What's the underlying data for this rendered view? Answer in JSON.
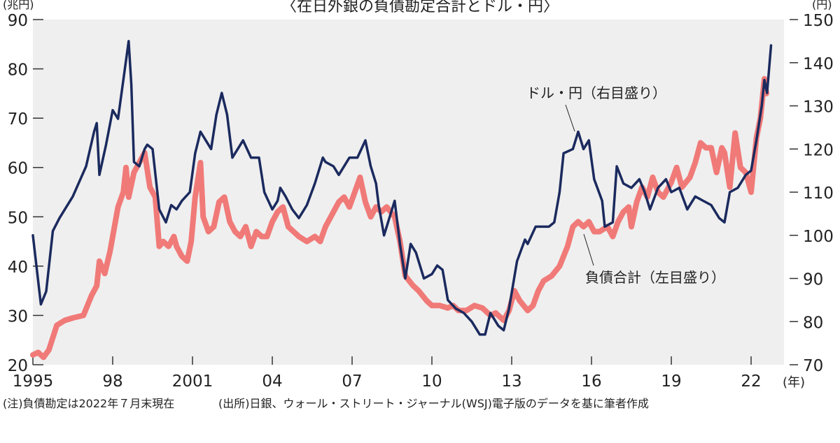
{
  "chart_data": {
    "type": "line",
    "title": "〈在日外銀の負債勘定合計とドル・円〉",
    "left_unit": "(兆円)",
    "right_unit": "(円)",
    "x_unit": "(年)",
    "left_ylim": [
      20,
      90
    ],
    "right_ylim": [
      70,
      150
    ],
    "left_ticks": [
      "20",
      "30",
      "40",
      "50",
      "60",
      "70",
      "80",
      "90"
    ],
    "right_ticks": [
      "70",
      "80",
      "90",
      "100",
      "110",
      "120",
      "130",
      "140",
      "150"
    ],
    "x_ticks": [
      {
        "year": 1995,
        "label": "1995"
      },
      {
        "year": 1998,
        "label": "98"
      },
      {
        "year": 2001,
        "label": "2001"
      },
      {
        "year": 2004,
        "label": "04"
      },
      {
        "year": 2007,
        "label": "07"
      },
      {
        "year": 2010,
        "label": "10"
      },
      {
        "year": 2013,
        "label": "13"
      },
      {
        "year": 2016,
        "label": "16"
      },
      {
        "year": 2019,
        "label": "19"
      },
      {
        "year": 2022,
        "label": "22"
      }
    ],
    "grid": false,
    "background": "#efefef",
    "series": [
      {
        "name": "ドル・円（右目盛り）",
        "axis": "right",
        "color": "#1b2a5e",
        "x": [
          1995.0,
          1995.3,
          1995.5,
          1995.75,
          1996.0,
          1996.5,
          1997.0,
          1997.3,
          1997.4,
          1997.5,
          1997.75,
          1998.0,
          1998.2,
          1998.4,
          1998.6,
          1998.7,
          1998.8,
          1999.0,
          1999.2,
          1999.3,
          1999.5,
          1999.75,
          2000.0,
          2000.2,
          2000.4,
          2000.6,
          2000.9,
          2001.1,
          2001.3,
          2001.5,
          2001.7,
          2001.9,
          2002.1,
          2002.3,
          2002.5,
          2002.7,
          2002.9,
          2003.2,
          2003.5,
          2003.7,
          2004.0,
          2004.2,
          2004.3,
          2004.5,
          2004.75,
          2005.0,
          2005.3,
          2005.6,
          2005.9,
          2006.0,
          2006.3,
          2006.5,
          2006.9,
          2007.2,
          2007.5,
          2007.7,
          2007.9,
          2008.0,
          2008.2,
          2008.4,
          2008.6,
          2008.8,
          2009.0,
          2009.2,
          2009.4,
          2009.7,
          2010.0,
          2010.2,
          2010.4,
          2010.6,
          2010.9,
          2011.2,
          2011.5,
          2011.8,
          2012.0,
          2012.2,
          2012.5,
          2012.7,
          2012.9,
          2013.2,
          2013.5,
          2013.6,
          2013.9,
          2014.1,
          2014.4,
          2014.6,
          2014.8,
          2014.95,
          2015.3,
          2015.5,
          2015.7,
          2015.9,
          2016.1,
          2016.4,
          2016.5,
          2016.8,
          2016.95,
          2017.2,
          2017.5,
          2017.8,
          2018.0,
          2018.2,
          2018.5,
          2018.8,
          2019.0,
          2019.3,
          2019.6,
          2019.9,
          2020.2,
          2020.5,
          2020.8,
          2021.0,
          2021.2,
          2021.5,
          2021.8,
          2022.0,
          2022.2,
          2022.4,
          2022.5,
          2022.6,
          2022.75
        ],
        "values": [
          100,
          84,
          87,
          101,
          104,
          109,
          116,
          124,
          126,
          114,
          121,
          129,
          127,
          136,
          145,
          135,
          117,
          116,
          120,
          121,
          120,
          106,
          103,
          107,
          106,
          108,
          110,
          119,
          124,
          122,
          120,
          128,
          133,
          128,
          118,
          120,
          122,
          118,
          118,
          110,
          106,
          108,
          111,
          109,
          106,
          104,
          107,
          112,
          118,
          117,
          116,
          114,
          118,
          118,
          122,
          116,
          112,
          107,
          100,
          104,
          108,
          98,
          90,
          98,
          96,
          90,
          91,
          93,
          92,
          85,
          83,
          82,
          80,
          77,
          77,
          82,
          79,
          78,
          83,
          94,
          99,
          98,
          102,
          102,
          102,
          103,
          110,
          119,
          120,
          124,
          120,
          122,
          113,
          108,
          102,
          103,
          116,
          112,
          111,
          113,
          110,
          106,
          111,
          113,
          110,
          111,
          106,
          109,
          108,
          107,
          104,
          103,
          110,
          111,
          114,
          115,
          122,
          130,
          136,
          133,
          144
        ]
      },
      {
        "name": "負債合計（左目盛り）",
        "axis": "left",
        "color": "#f07a78",
        "x": [
          1995.0,
          1995.2,
          1995.4,
          1995.6,
          1995.9,
          1996.2,
          1996.5,
          1996.9,
          1997.2,
          1997.4,
          1997.5,
          1997.7,
          1997.9,
          1998.0,
          1998.2,
          1998.4,
          1998.5,
          1998.6,
          1998.8,
          1999.0,
          1999.1,
          1999.2,
          1999.4,
          1999.6,
          1999.75,
          1999.9,
          2000.1,
          2000.3,
          2000.4,
          2000.6,
          2000.8,
          2000.95,
          2001.1,
          2001.3,
          2001.4,
          2001.6,
          2001.8,
          2002.0,
          2002.2,
          2002.4,
          2002.6,
          2002.8,
          2003.0,
          2003.2,
          2003.4,
          2003.6,
          2003.8,
          2004.0,
          2004.2,
          2004.4,
          2004.6,
          2004.8,
          2005.0,
          2005.3,
          2005.6,
          2005.8,
          2006.0,
          2006.3,
          2006.5,
          2006.7,
          2006.9,
          2007.1,
          2007.3,
          2007.5,
          2007.7,
          2007.9,
          2008.1,
          2008.3,
          2008.6,
          2008.8,
          2009.0,
          2009.3,
          2009.5,
          2009.8,
          2010.0,
          2010.3,
          2010.6,
          2010.8,
          2011.0,
          2011.3,
          2011.6,
          2011.9,
          2012.2,
          2012.4,
          2012.7,
          2012.9,
          2013.1,
          2013.3,
          2013.6,
          2013.8,
          2014.0,
          2014.2,
          2014.5,
          2014.8,
          2014.95,
          2015.1,
          2015.3,
          2015.5,
          2015.7,
          2015.9,
          2016.1,
          2016.3,
          2016.6,
          2016.8,
          2017.0,
          2017.2,
          2017.4,
          2017.5,
          2017.7,
          2017.9,
          2018.1,
          2018.3,
          2018.5,
          2018.7,
          2019.0,
          2019.2,
          2019.4,
          2019.7,
          2019.9,
          2020.1,
          2020.3,
          2020.5,
          2020.7,
          2020.9,
          2021.0,
          2021.2,
          2021.4,
          2021.6,
          2021.8,
          2022.0,
          2022.2,
          2022.35,
          2022.5,
          2022.58
        ],
        "values": [
          22,
          22.5,
          21.5,
          23,
          28,
          29,
          29.5,
          30,
          34,
          36,
          41,
          38.5,
          43,
          46,
          52,
          55,
          60,
          54,
          59,
          61,
          62,
          63,
          56,
          54,
          44,
          45,
          44,
          46,
          44,
          42,
          41,
          45,
          54,
          61,
          50,
          47,
          48,
          53,
          54,
          49,
          47,
          46,
          48,
          44,
          47,
          46,
          46,
          49,
          51,
          52,
          48,
          47,
          46,
          45,
          46,
          45,
          48,
          51,
          53,
          54,
          52,
          55,
          58,
          53,
          50,
          52,
          51,
          52,
          50,
          45,
          38,
          36,
          35,
          33,
          32,
          32,
          31.5,
          32,
          31,
          31,
          32,
          31.5,
          30,
          30.5,
          29,
          31,
          35,
          33,
          31,
          32,
          35,
          37,
          38,
          40,
          42,
          44,
          48,
          49,
          48,
          49,
          47,
          47,
          48,
          46,
          49,
          51,
          52,
          48,
          53,
          56,
          54,
          58,
          55,
          54,
          57,
          60,
          56,
          58,
          61,
          65,
          64,
          64,
          59,
          64,
          63,
          56,
          67,
          60,
          59,
          55,
          66,
          70,
          78,
          75
        ]
      }
    ]
  },
  "notes": {
    "note": "(注)負債勘定は2022年７月末現在",
    "source": "(出所)日銀、ウォール・ストリート・ジャーナル(WSJ)電子版のデータを基に筆者作成"
  }
}
